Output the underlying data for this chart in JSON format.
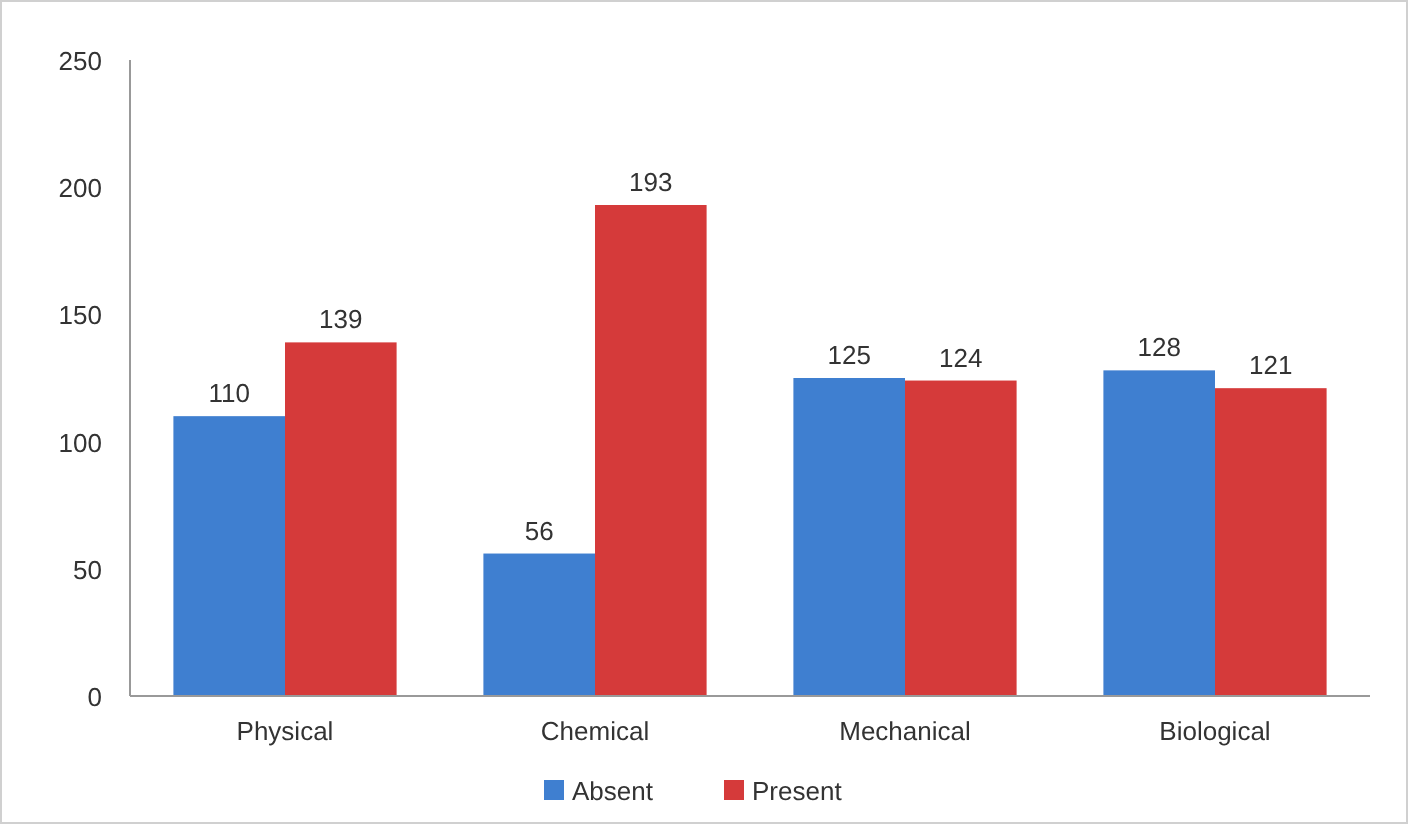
{
  "chart_data": {
    "type": "bar",
    "categories": [
      "Physical",
      "Chemical",
      "Mechanical",
      "Biological"
    ],
    "series": [
      {
        "name": "Absent",
        "color": "#3f7fd0",
        "values": [
          110,
          56,
          125,
          128
        ]
      },
      {
        "name": "Present",
        "color": "#d53a3a",
        "values": [
          139,
          193,
          124,
          121
        ]
      }
    ],
    "ylim": [
      0,
      250
    ],
    "yticks": [
      0,
      50,
      100,
      150,
      200,
      250
    ],
    "grid": false,
    "legend": "bottom",
    "data_labels": true
  }
}
